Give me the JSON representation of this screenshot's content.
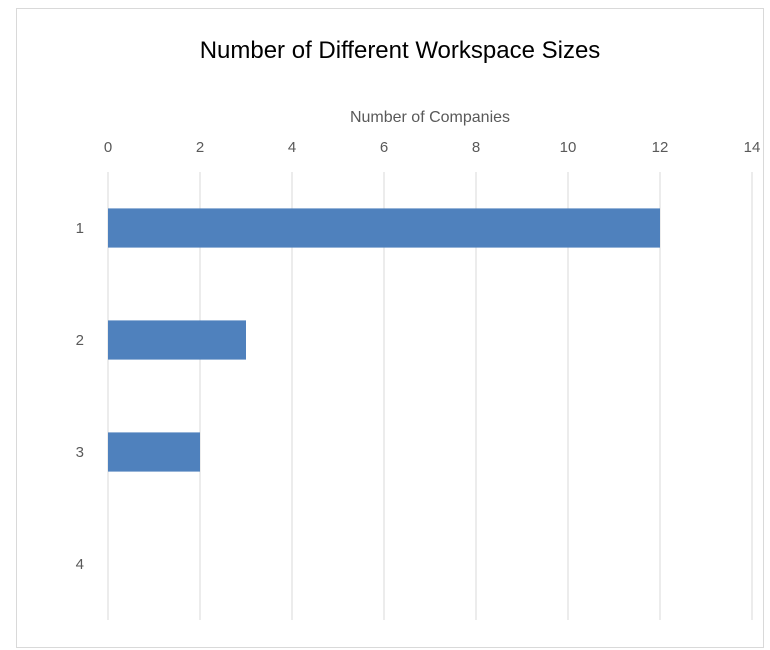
{
  "chart_data": {
    "type": "bar",
    "orientation": "horizontal",
    "title": "Number of Different Workspace Sizes",
    "xlabel": "Number of Companies",
    "ylabel": "",
    "xaxis_position": "top",
    "xlim": [
      0,
      14
    ],
    "x_ticks": [
      0,
      2,
      4,
      6,
      8,
      10,
      12,
      14
    ],
    "categories": [
      "1",
      "2",
      "3",
      "4"
    ],
    "values": [
      12,
      3,
      2,
      0
    ],
    "bar_color": "#4f81bd",
    "grid": true,
    "legend": "none"
  }
}
